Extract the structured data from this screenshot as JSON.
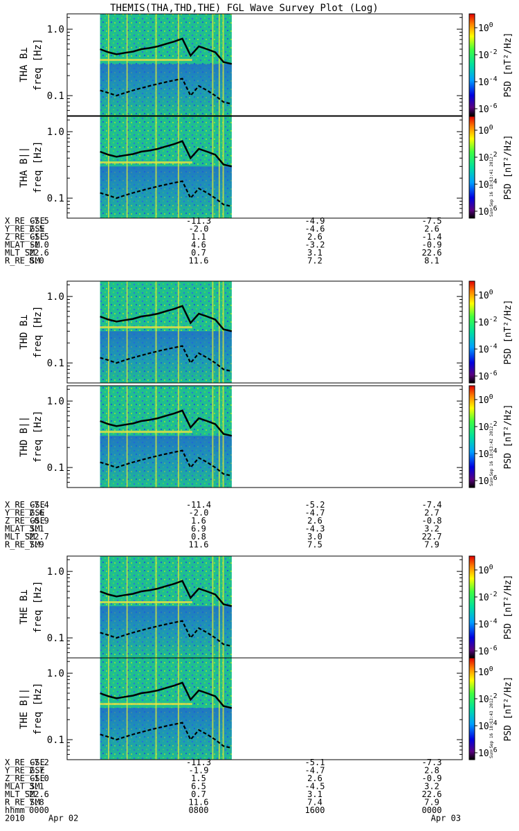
{
  "title": "THEMIS(THA,THD,THE) FGL Wave Survey Plot (Log)",
  "colors": {
    "spectrogram_background": "#1fc08c",
    "frame": "#000000",
    "trace": "#000000"
  },
  "stamps": [
    "Sun Sep 16 18:13:41 2012",
    "Sun Sep 16 18:13:42 2012",
    "Sun Sep 16 18:13:43 2012"
  ],
  "chart_data": [
    {
      "type": "heatmap",
      "title": "",
      "panels": [
        {
          "ylabel": "THA B⊥",
          "ysublabel": "freq [Hz]",
          "colorbar_label": "PSD [nT²/Hz]"
        },
        {
          "ylabel": "THA B||",
          "ysublabel": "freq [Hz]",
          "colorbar_label": "PSD [nT²/Hz]"
        },
        {
          "ylabel": "THD B⊥",
          "ysublabel": "freq [Hz]",
          "colorbar_label": "PSD [nT²/Hz]"
        },
        {
          "ylabel": "THD B||",
          "ysublabel": "freq [Hz]",
          "colorbar_label": "PSD [nT²/Hz]"
        },
        {
          "ylabel": "THE B⊥",
          "ysublabel": "freq [Hz]",
          "colorbar_label": "PSD [nT²/Hz]"
        },
        {
          "ylabel": "THE B||",
          "ysublabel": "freq [Hz]",
          "colorbar_label": "PSD [nT²/Hz]"
        }
      ],
      "y_scale": "log",
      "ylim": [
        0.05,
        1.7
      ],
      "y_ticks": [
        {
          "value": 1.0,
          "label": "1.0"
        },
        {
          "value": 0.1,
          "label": "0.1"
        }
      ],
      "x_range_hours": [
        0,
        24
      ],
      "data_coverage_hours": [
        2.0,
        10.0
      ],
      "colorbar_scale": "log",
      "colorbar_ticks": [
        {
          "base": "10",
          "exp": "0"
        },
        {
          "base": "10",
          "exp": "-2"
        },
        {
          "base": "10",
          "exp": "-4"
        },
        {
          "base": "10",
          "exp": "-6"
        }
      ],
      "upper_trace": {
        "hours": [
          2.0,
          2.5,
          3.0,
          3.5,
          4.0,
          4.5,
          5.0,
          5.5,
          6.0,
          6.5,
          7.0,
          7.5,
          8.0,
          8.5,
          9.0,
          9.5,
          10.0
        ],
        "freq_hz": [
          0.5,
          0.45,
          0.42,
          0.44,
          0.46,
          0.5,
          0.52,
          0.55,
          0.6,
          0.65,
          0.72,
          0.4,
          0.55,
          0.5,
          0.45,
          0.32,
          0.3
        ]
      },
      "lower_trace": {
        "hours": [
          2.0,
          2.5,
          3.0,
          3.5,
          4.0,
          4.5,
          5.0,
          5.5,
          6.0,
          6.5,
          7.0,
          7.5,
          8.0,
          8.5,
          9.0,
          9.5,
          10.0
        ],
        "freq_hz": [
          0.12,
          0.11,
          0.1,
          0.11,
          0.12,
          0.13,
          0.14,
          0.15,
          0.16,
          0.17,
          0.18,
          0.1,
          0.14,
          0.12,
          0.1,
          0.08,
          0.075
        ]
      }
    }
  ],
  "orbit_tables": [
    {
      "rows": [
        {
          "label": "X_RE_GSE",
          "values": [
            "-7.5",
            "-11.3",
            "-4.9",
            "-7.5"
          ]
        },
        {
          "label": "Y_RE_GSE",
          "values": [
            "2.5",
            "-2.0",
            "-4.6",
            "2.6"
          ]
        },
        {
          "label": "Z_RE_GSE",
          "values": [
            "-1.5",
            "1.1",
            "2.6",
            "-1.4"
          ]
        },
        {
          "label": "MLAT_SM",
          "values": [
            "-1.0",
            "4.6",
            "-3.2",
            "-0.9"
          ]
        },
        {
          "label": "MLT_SM",
          "values": [
            "22.6",
            "0.7",
            "3.1",
            "22.6"
          ]
        },
        {
          "label": "R_RE_SM",
          "values": [
            "8.0",
            "11.6",
            "7.2",
            "8.1"
          ]
        }
      ]
    },
    {
      "rows": [
        {
          "label": "X_RE_GSE",
          "values": [
            "-7.4",
            "-11.4",
            "-5.2",
            "-7.4"
          ]
        },
        {
          "label": "Y_RE_GSE",
          "values": [
            "2.6",
            "-2.0",
            "-4.7",
            "2.7"
          ]
        },
        {
          "label": "Z_RE_GSE",
          "values": [
            "-0.9",
            "1.6",
            "2.6",
            "-0.8"
          ]
        },
        {
          "label": "MLAT_SM",
          "values": [
            "3.1",
            "6.9",
            "-4.3",
            "3.2"
          ]
        },
        {
          "label": "MLT_SM",
          "values": [
            "22.7",
            "0.8",
            "3.0",
            "22.7"
          ]
        },
        {
          "label": "R_RE_SM",
          "values": [
            "7.9",
            "11.6",
            "7.5",
            "7.9"
          ]
        }
      ]
    },
    {
      "rows": [
        {
          "label": "X_RE_GSE",
          "values": [
            "-7.2",
            "-11.3",
            "-5.1",
            "-7.3"
          ]
        },
        {
          "label": "Y_RE_GSE",
          "values": [
            "2.7",
            "-1.9",
            "-4.7",
            "2.8"
          ]
        },
        {
          "label": "Z_RE_GSE",
          "values": [
            "-1.0",
            "1.5",
            "2.6",
            "-0.9"
          ]
        },
        {
          "label": "MLAT_SM",
          "values": [
            "3.1",
            "6.5",
            "-4.5",
            "3.2"
          ]
        },
        {
          "label": "MLT_SM",
          "values": [
            "22.6",
            "0.7",
            "3.1",
            "22.6"
          ]
        },
        {
          "label": "R_RE_SM",
          "values": [
            "7.8",
            "11.6",
            "7.4",
            "7.9"
          ]
        }
      ]
    }
  ],
  "time_axis": {
    "row_label": "hhmm",
    "year": "2010",
    "ticks": [
      {
        "hours": 0,
        "label": "0000",
        "date": "Apr 02"
      },
      {
        "hours": 8,
        "label": "0800",
        "date": ""
      },
      {
        "hours": 16,
        "label": "1600",
        "date": ""
      },
      {
        "hours": 24,
        "label": "0000",
        "date": "Apr 03"
      }
    ]
  }
}
